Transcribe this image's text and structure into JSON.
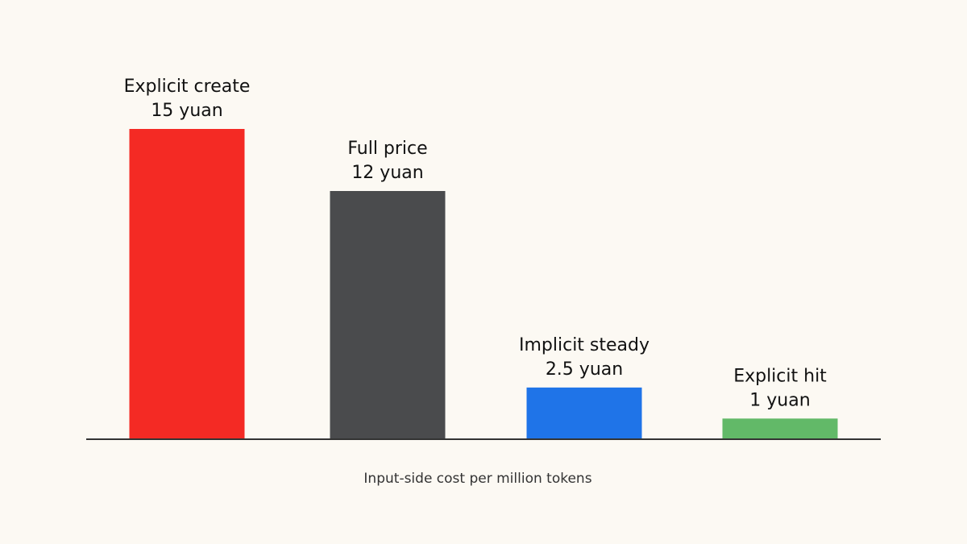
{
  "chart_data": {
    "type": "bar",
    "categories": [
      "Explicit create",
      "Full price",
      "Implicit steady",
      "Explicit hit"
    ],
    "values": [
      15,
      12,
      2.5,
      1
    ],
    "value_labels": [
      "15 yuan",
      "12 yuan",
      "2.5 yuan",
      "1 yuan"
    ],
    "colors": [
      "#f42a24",
      "#4a4b4d",
      "#1f74e8",
      "#62b968"
    ],
    "xlabel": "Input-side cost per million tokens"
  }
}
